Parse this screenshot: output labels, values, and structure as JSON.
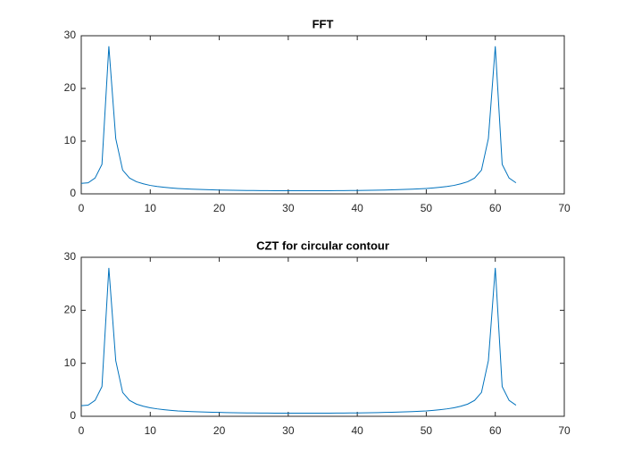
{
  "chart_data": [
    {
      "type": "line",
      "title": "FFT",
      "x": [
        0,
        1,
        2,
        3,
        4,
        5,
        6,
        7,
        8,
        9,
        10,
        11,
        12,
        13,
        14,
        15,
        16,
        17,
        18,
        19,
        20,
        21,
        22,
        23,
        24,
        25,
        26,
        27,
        28,
        29,
        30,
        31,
        32,
        33,
        34,
        35,
        36,
        37,
        38,
        39,
        40,
        41,
        42,
        43,
        44,
        45,
        46,
        47,
        48,
        49,
        50,
        51,
        52,
        53,
        54,
        55,
        56,
        57,
        58,
        59,
        60,
        61,
        62,
        63
      ],
      "values": [
        2.0,
        2.1,
        3.0,
        5.6,
        28.0,
        10.5,
        4.5,
        3.0,
        2.3,
        1.9,
        1.6,
        1.4,
        1.25,
        1.12,
        1.02,
        0.95,
        0.89,
        0.84,
        0.8,
        0.76,
        0.73,
        0.7,
        0.68,
        0.66,
        0.64,
        0.63,
        0.62,
        0.61,
        0.6,
        0.6,
        0.59,
        0.59,
        0.59,
        0.59,
        0.59,
        0.6,
        0.6,
        0.61,
        0.62,
        0.63,
        0.64,
        0.66,
        0.68,
        0.7,
        0.73,
        0.76,
        0.8,
        0.84,
        0.89,
        0.95,
        1.02,
        1.12,
        1.25,
        1.4,
        1.6,
        1.9,
        2.3,
        3.0,
        4.5,
        10.5,
        28.0,
        5.6,
        3.0,
        2.1
      ],
      "color": "#0072bd",
      "xlim": [
        0,
        70
      ],
      "xticks": [
        0,
        10,
        20,
        30,
        40,
        50,
        60,
        70
      ],
      "ylim": [
        0,
        30
      ],
      "yticks": [
        0,
        10,
        20,
        30
      ]
    },
    {
      "type": "line",
      "title": "CZT for circular contour",
      "x": [
        0,
        1,
        2,
        3,
        4,
        5,
        6,
        7,
        8,
        9,
        10,
        11,
        12,
        13,
        14,
        15,
        16,
        17,
        18,
        19,
        20,
        21,
        22,
        23,
        24,
        25,
        26,
        27,
        28,
        29,
        30,
        31,
        32,
        33,
        34,
        35,
        36,
        37,
        38,
        39,
        40,
        41,
        42,
        43,
        44,
        45,
        46,
        47,
        48,
        49,
        50,
        51,
        52,
        53,
        54,
        55,
        56,
        57,
        58,
        59,
        60,
        61,
        62,
        63
      ],
      "values": [
        2.0,
        2.1,
        3.0,
        5.6,
        28.0,
        10.5,
        4.5,
        3.0,
        2.3,
        1.9,
        1.6,
        1.4,
        1.25,
        1.12,
        1.02,
        0.95,
        0.89,
        0.84,
        0.8,
        0.76,
        0.73,
        0.7,
        0.68,
        0.66,
        0.64,
        0.63,
        0.62,
        0.61,
        0.6,
        0.6,
        0.59,
        0.59,
        0.59,
        0.59,
        0.59,
        0.6,
        0.6,
        0.61,
        0.62,
        0.63,
        0.64,
        0.66,
        0.68,
        0.7,
        0.73,
        0.76,
        0.8,
        0.84,
        0.89,
        0.95,
        1.02,
        1.12,
        1.25,
        1.4,
        1.6,
        1.9,
        2.3,
        3.0,
        4.5,
        10.5,
        28.0,
        5.6,
        3.0,
        2.1
      ],
      "color": "#0072bd",
      "xlim": [
        0,
        70
      ],
      "xticks": [
        0,
        10,
        20,
        30,
        40,
        50,
        60,
        70
      ],
      "ylim": [
        0,
        30
      ],
      "yticks": [
        0,
        10,
        20,
        30
      ]
    }
  ]
}
